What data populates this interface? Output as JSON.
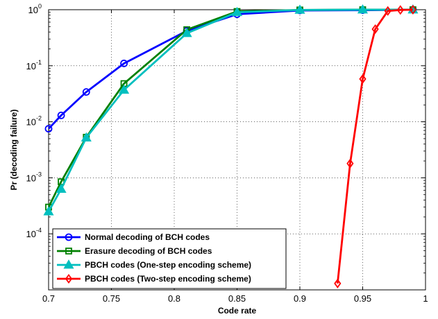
{
  "chart_data": {
    "type": "line",
    "title": "",
    "xlabel": "Code rate",
    "ylabel": "Pr (decoding failure)",
    "xlim": [
      0.7,
      1.0
    ],
    "ylim": [
      1e-05,
      1
    ],
    "yscale": "log",
    "grid": true,
    "legend_position": "bottom-left",
    "x_ticks": [
      "0.7",
      "0.75",
      "0.8",
      "0.85",
      "0.9",
      "0.95",
      "1"
    ],
    "y_ticks": [
      {
        "base": "10",
        "exp": "0",
        "value": 1
      },
      {
        "base": "10",
        "exp": "-1",
        "value": 0.1
      },
      {
        "base": "10",
        "exp": "-2",
        "value": 0.01
      },
      {
        "base": "10",
        "exp": "-3",
        "value": 0.001
      },
      {
        "base": "10",
        "exp": "-4",
        "value": 0.0001
      }
    ],
    "series": [
      {
        "name": "Normal decoding of BCH codes",
        "color": "#0000ff",
        "marker": "circle",
        "points": [
          [
            0.7,
            0.0075
          ],
          [
            0.71,
            0.013
          ],
          [
            0.73,
            0.034
          ],
          [
            0.76,
            0.11
          ],
          [
            0.81,
            0.42
          ],
          [
            0.85,
            0.83
          ],
          [
            0.9,
            0.97
          ],
          [
            0.95,
            0.98
          ],
          [
            0.99,
            1.0
          ]
        ]
      },
      {
        "name": "Erasure decoding of BCH codes",
        "color": "#008000",
        "marker": "square",
        "points": [
          [
            0.7,
            0.0003
          ],
          [
            0.71,
            0.00085
          ],
          [
            0.73,
            0.0053
          ],
          [
            0.76,
            0.048
          ],
          [
            0.81,
            0.44
          ],
          [
            0.85,
            0.93
          ],
          [
            0.9,
            0.99
          ],
          [
            0.95,
            1.0
          ],
          [
            0.99,
            1.0
          ]
        ]
      },
      {
        "name": "PBCH codes (One-step encoding scheme)",
        "color": "#00bfbf",
        "marker": "triangle",
        "points": [
          [
            0.7,
            0.00025
          ],
          [
            0.71,
            0.00063
          ],
          [
            0.73,
            0.0052
          ],
          [
            0.76,
            0.037
          ],
          [
            0.81,
            0.38
          ],
          [
            0.85,
            0.9
          ],
          [
            0.9,
            0.99
          ],
          [
            0.95,
            1.0
          ],
          [
            0.99,
            1.0
          ]
        ]
      },
      {
        "name": "PBCH codes (Two-step encoding scheme)",
        "color": "#ff0000",
        "marker": "diamond",
        "points": [
          [
            0.93,
            1.3e-05
          ],
          [
            0.94,
            0.0018
          ],
          [
            0.95,
            0.058
          ],
          [
            0.96,
            0.45
          ],
          [
            0.97,
            0.95
          ],
          [
            0.98,
            0.99
          ],
          [
            0.99,
            1.0
          ]
        ]
      }
    ]
  }
}
